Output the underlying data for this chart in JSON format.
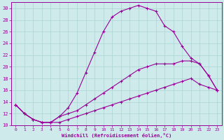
{
  "xlabel": "Windchill (Refroidissement éolien,°C)",
  "bg_color": "#ceeaea",
  "grid_color": "#aad4d4",
  "line_color": "#990099",
  "xlim": [
    -0.5,
    23.5
  ],
  "ylim": [
    10,
    31
  ],
  "yticks": [
    10,
    12,
    14,
    16,
    18,
    20,
    22,
    24,
    26,
    28,
    30
  ],
  "xticks": [
    0,
    1,
    2,
    3,
    4,
    5,
    6,
    7,
    8,
    9,
    10,
    11,
    12,
    13,
    14,
    15,
    16,
    17,
    18,
    19,
    20,
    21,
    22,
    23
  ],
  "series": [
    {
      "x": [
        0,
        1,
        2,
        3,
        4,
        5,
        6,
        7,
        8,
        9,
        10,
        11,
        12,
        13,
        14,
        15,
        16,
        17,
        18,
        19,
        20,
        21,
        22,
        23
      ],
      "y": [
        13.5,
        12.0,
        11.0,
        10.5,
        10.5,
        10.5,
        11.0,
        11.5,
        12.0,
        12.5,
        13.0,
        13.5,
        14.0,
        14.5,
        15.0,
        15.5,
        16.0,
        16.5,
        17.0,
        17.5,
        18.0,
        17.0,
        16.5,
        16.0
      ]
    },
    {
      "x": [
        0,
        1,
        2,
        3,
        4,
        5,
        6,
        7,
        8,
        9,
        10,
        11,
        12,
        13,
        14,
        15,
        16,
        17,
        18,
        19,
        20,
        21,
        22,
        23
      ],
      "y": [
        13.5,
        12.0,
        11.0,
        10.5,
        10.5,
        11.5,
        12.0,
        12.5,
        13.5,
        14.5,
        15.5,
        16.5,
        17.5,
        18.5,
        19.5,
        20.0,
        20.5,
        20.5,
        20.5,
        21.0,
        21.0,
        20.5,
        18.5,
        16.0
      ]
    },
    {
      "x": [
        0,
        1,
        2,
        3,
        4,
        5,
        6,
        7,
        8,
        9,
        10,
        11,
        12,
        13,
        14,
        15,
        16,
        17,
        18,
        19,
        20,
        21,
        22,
        23
      ],
      "y": [
        13.5,
        12.0,
        11.0,
        10.5,
        10.5,
        11.5,
        13.0,
        15.5,
        19.0,
        22.5,
        26.0,
        28.5,
        29.5,
        30.0,
        30.5,
        30.0,
        29.5,
        27.0,
        26.0,
        23.5,
        21.5,
        20.5,
        18.5,
        16.0
      ]
    }
  ]
}
